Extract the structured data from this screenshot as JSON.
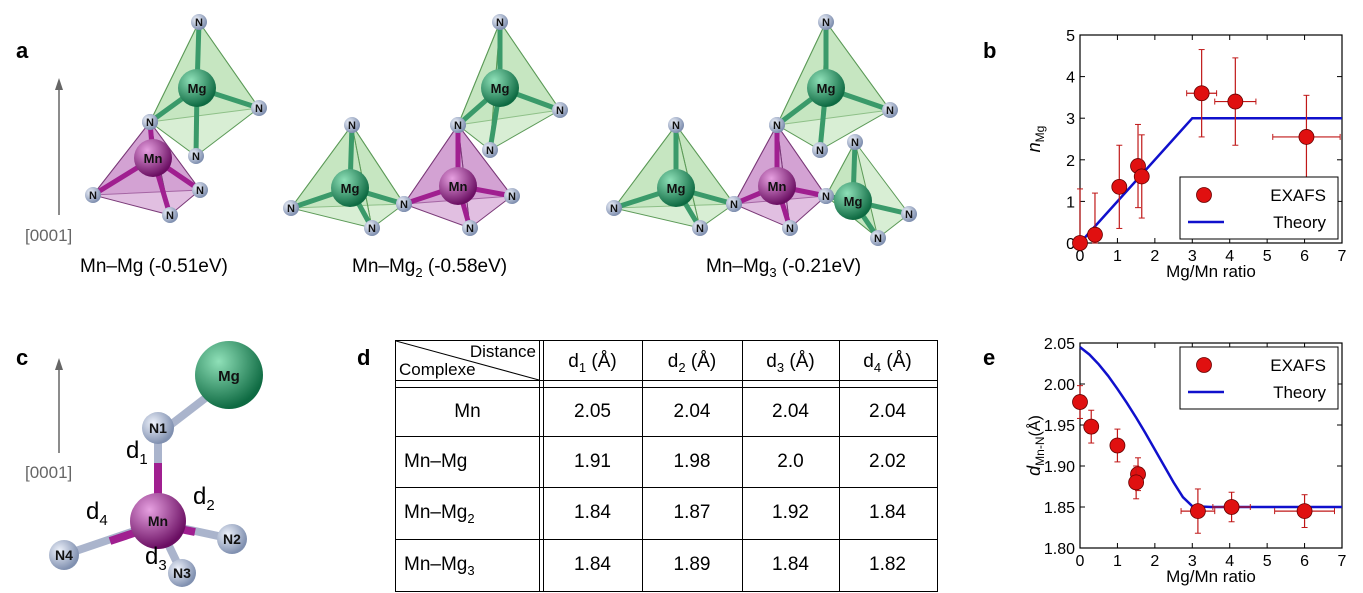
{
  "panels": {
    "a": "a",
    "b": "b",
    "c": "c",
    "d": "d",
    "e": "e"
  },
  "panel_a": {
    "axis_label": "[0001]",
    "structures": [
      {
        "caption_pre": "Mn–Mg",
        "caption_sub": "",
        "caption_post": " (-0.51eV)"
      },
      {
        "caption_pre": "Mn–Mg",
        "caption_sub": "2",
        "caption_post": "  (-0.58eV)"
      },
      {
        "caption_pre": "Mn–Mg",
        "caption_sub": "3",
        "caption_post": "  (-0.21eV)"
      }
    ],
    "atom_labels": {
      "mg": "Mg",
      "mn": "Mn",
      "n": "N"
    }
  },
  "panel_c": {
    "axis_label": "[0001]",
    "atoms": {
      "mg": "Mg",
      "mn": "Mn",
      "n1": "N1",
      "n2": "N2",
      "n3": "N3",
      "n4": "N4"
    },
    "distances": [
      {
        "main": "d",
        "sub": "1"
      },
      {
        "main": "d",
        "sub": "2"
      },
      {
        "main": "d",
        "sub": "3"
      },
      {
        "main": "d",
        "sub": "4"
      }
    ]
  },
  "table": {
    "corner_top": "Distance",
    "corner_bottom": "Complexe",
    "headers": [
      {
        "main": "d",
        "sub": "1",
        "unit": "  (Å)"
      },
      {
        "main": "d",
        "sub": "2",
        "unit": "  (Å)"
      },
      {
        "main": "d",
        "sub": "3",
        "unit": " (Å)"
      },
      {
        "main": "d",
        "sub": "4",
        "unit": " (Å)"
      }
    ],
    "rows": [
      {
        "label_pre": "Mn",
        "label_sub": "",
        "values": [
          "2.05",
          "2.04",
          "2.04",
          "2.04"
        ]
      },
      {
        "label_pre": "Mn–Mg",
        "label_sub": "",
        "values": [
          "1.91",
          "1.98",
          "2.0",
          "2.02"
        ]
      },
      {
        "label_pre": "Mn–Mg",
        "label_sub": "2",
        "values": [
          "1.84",
          "1.87",
          "1.92",
          "1.84"
        ]
      },
      {
        "label_pre": "Mn–Mg",
        "label_sub": "3",
        "values": [
          "1.84",
          "1.89",
          "1.84",
          "1.82"
        ]
      }
    ]
  },
  "colors": {
    "mg": "#1f8a5b",
    "mn": "#9a1f8a",
    "n": "#a8b4cf",
    "exafs": "#e01010",
    "theory": "#1010cc",
    "mg_tet": "#b8e0b0",
    "mn_tet": "#c98ac8"
  },
  "chart_data": [
    {
      "type": "scatter",
      "panel": "b",
      "xlabel": "Mg/Mn ratio",
      "ylabel_main": "n",
      "ylabel_sub": "Mg",
      "xlim": [
        0,
        7
      ],
      "ylim": [
        0,
        5
      ],
      "xticks": [
        "0",
        "1",
        "2",
        "3",
        "4",
        "5",
        "6",
        "7"
      ],
      "yticks": [
        "0",
        "1",
        "2",
        "3",
        "4",
        "5"
      ],
      "legend": {
        "placement": "bottom-right",
        "entries": [
          "EXAFS",
          "Theory"
        ]
      },
      "series": [
        {
          "name": "EXAFS",
          "kind": "points",
          "points": [
            {
              "x": 0,
              "y": 0,
              "xerr": 0.1,
              "yerr": 1.3
            },
            {
              "x": 0.4,
              "y": 0.2,
              "xerr": 0.1,
              "yerr": 1.0
            },
            {
              "x": 1.05,
              "y": 1.35,
              "xerr": 0.15,
              "yerr": 1.0
            },
            {
              "x": 1.55,
              "y": 1.85,
              "xerr": 0.15,
              "yerr": 1.0
            },
            {
              "x": 1.65,
              "y": 1.6,
              "xerr": 0.15,
              "yerr": 1.0
            },
            {
              "x": 3.25,
              "y": 3.6,
              "xerr": 0.4,
              "yerr": 1.05
            },
            {
              "x": 4.15,
              "y": 3.4,
              "xerr": 0.55,
              "yerr": 1.05
            },
            {
              "x": 6.05,
              "y": 2.55,
              "xerr": 0.9,
              "yerr": 1.0
            }
          ]
        },
        {
          "name": "Theory",
          "kind": "line",
          "x": [
            0,
            3,
            7
          ],
          "y": [
            0,
            3,
            3
          ]
        }
      ]
    },
    {
      "type": "scatter",
      "panel": "e",
      "xlabel": "Mg/Mn ratio",
      "ylabel_main": "d",
      "ylabel_sub": "Mn-N",
      "ylabel_unit": "(Å)",
      "xlim": [
        0,
        7
      ],
      "ylim": [
        1.8,
        2.05
      ],
      "xticks": [
        "0",
        "1",
        "2",
        "3",
        "4",
        "5",
        "6",
        "7"
      ],
      "yticks": [
        "1.80",
        "1.85",
        "1.90",
        "1.95",
        "2.00",
        "2.05"
      ],
      "legend": {
        "placement": "top-right",
        "entries": [
          "EXAFS",
          "Theory"
        ]
      },
      "series": [
        {
          "name": "EXAFS",
          "kind": "points",
          "points": [
            {
              "x": 0,
              "y": 1.978,
              "xerr": 0.1,
              "yerr": 0.02
            },
            {
              "x": 0.3,
              "y": 1.948,
              "xerr": 0.1,
              "yerr": 0.02
            },
            {
              "x": 1.0,
              "y": 1.925,
              "xerr": 0.15,
              "yerr": 0.02
            },
            {
              "x": 1.55,
              "y": 1.89,
              "xerr": 0.15,
              "yerr": 0.02
            },
            {
              "x": 1.5,
              "y": 1.88,
              "xerr": 0.15,
              "yerr": 0.02
            },
            {
              "x": 3.15,
              "y": 1.845,
              "xerr": 0.45,
              "yerr": 0.027
            },
            {
              "x": 4.05,
              "y": 1.85,
              "xerr": 0.5,
              "yerr": 0.018
            },
            {
              "x": 6.0,
              "y": 1.845,
              "xerr": 0.8,
              "yerr": 0.02
            }
          ]
        },
        {
          "name": "Theory",
          "kind": "line",
          "x": [
            0,
            0.25,
            0.5,
            0.75,
            1.0,
            1.25,
            1.5,
            1.75,
            2.0,
            2.25,
            2.5,
            2.75,
            3.0,
            3.5,
            4,
            5,
            6,
            7
          ],
          "y": [
            2.045,
            2.036,
            2.024,
            2.01,
            1.994,
            1.977,
            1.959,
            1.94,
            1.92,
            1.9,
            1.88,
            1.862,
            1.851,
            1.85,
            1.85,
            1.85,
            1.85,
            1.85
          ]
        }
      ]
    }
  ]
}
